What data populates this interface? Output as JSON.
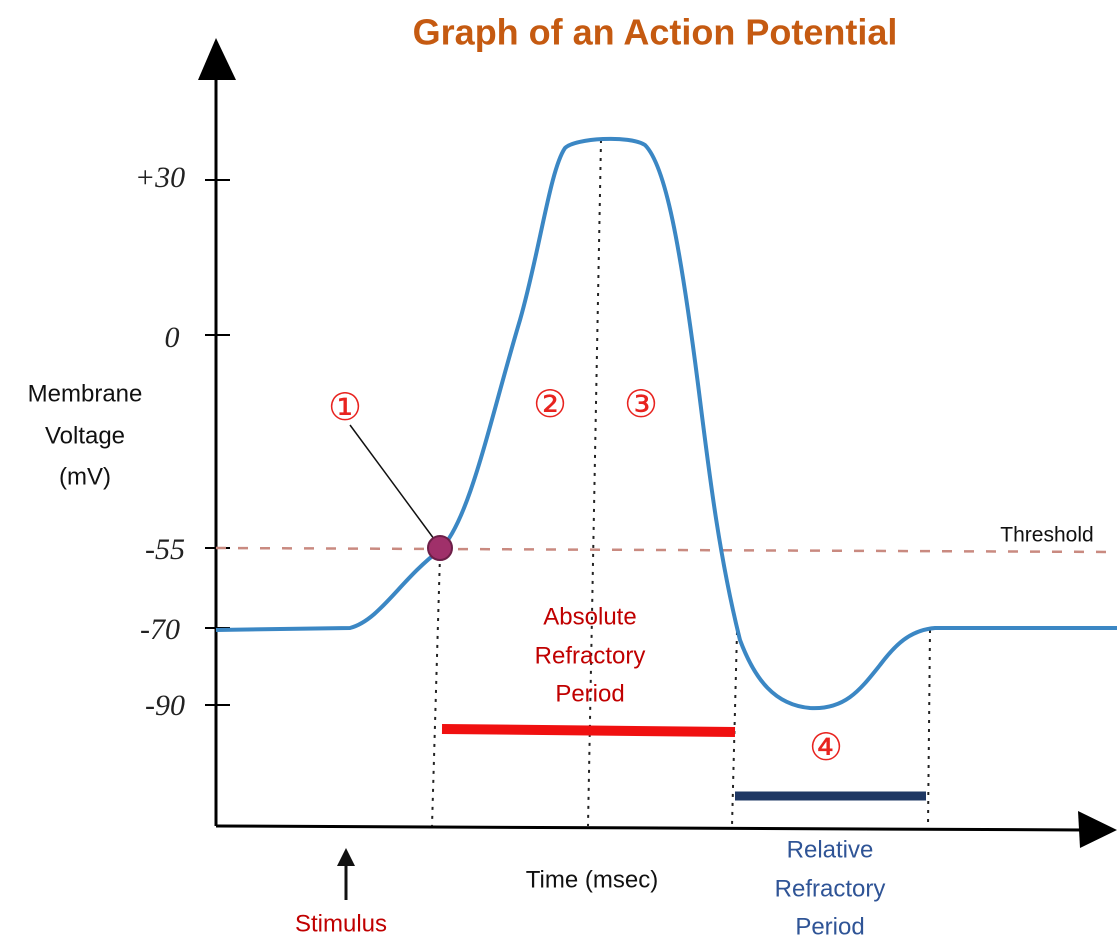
{
  "title": "Graph of an Action Potential",
  "y_axis": {
    "label_lines": [
      "Membrane",
      "Voltage",
      "(mV)"
    ],
    "tick_labels": [
      "+30",
      "0",
      "-55",
      "-70",
      "-90"
    ]
  },
  "x_axis": {
    "label": "Time (msec)"
  },
  "threshold_label": "Threshold",
  "phase_labels": [
    "①",
    "②",
    "③",
    "④"
  ],
  "stimulus_label": "Stimulus",
  "absolute_refractory_lines": [
    "Absolute",
    "Refractory",
    "Period"
  ],
  "relative_refractory_lines": [
    "Relative",
    "Refractory",
    "Period"
  ]
}
